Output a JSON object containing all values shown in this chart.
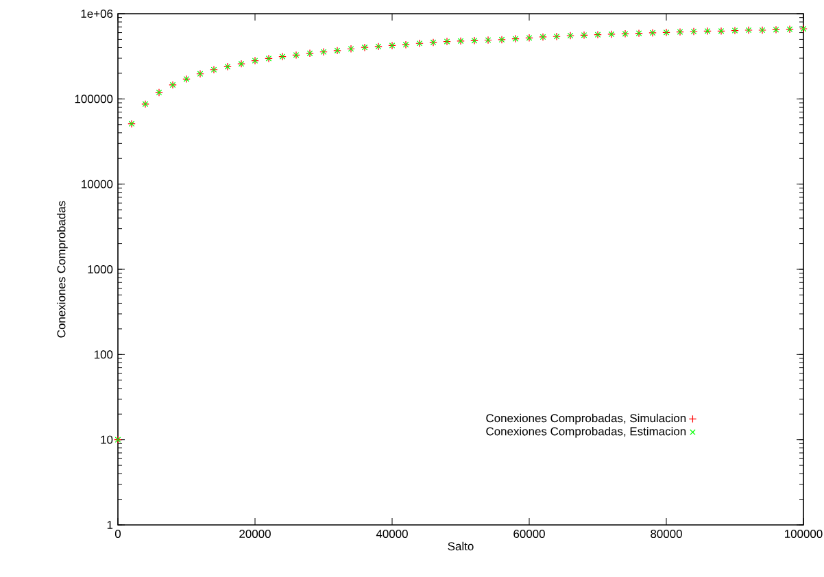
{
  "chart_data": {
    "type": "scatter",
    "xlabel": "Salto",
    "ylabel": "Conexiones Comprobadas",
    "log": "y",
    "legend": "bottom right",
    "grid": false,
    "x": [
      0,
      2000,
      4000,
      6000,
      8000,
      10000,
      12000,
      14000,
      16000,
      18000,
      20000,
      22000,
      24000,
      26000,
      28000,
      30000,
      32000,
      34000,
      36000,
      38000,
      40000,
      42000,
      44000,
      46000,
      48000,
      50000,
      52000,
      54000,
      56000,
      58000,
      60000,
      62000,
      64000,
      66000,
      68000,
      70000,
      72000,
      74000,
      76000,
      78000,
      80000,
      82000,
      84000,
      86000,
      88000,
      90000,
      92000,
      94000,
      96000,
      98000,
      100000
    ],
    "xlim": [
      0,
      100000
    ],
    "xticks": [
      0,
      20000,
      40000,
      60000,
      80000,
      100000
    ],
    "ylim": [
      1,
      1000000
    ],
    "yticks": [
      1,
      10,
      100,
      1000,
      10000,
      100000,
      {
        "value": 1000000,
        "label": "1e+06"
      }
    ],
    "series": [
      {
        "name": "Conexiones Comprobadas, Simulacion",
        "color": "#ff0000",
        "marker": "cross",
        "values": [
          10,
          51000,
          87000,
          119000,
          146000,
          171000,
          197000,
          220000,
          239000,
          258000,
          281000,
          298000,
          314000,
          327000,
          343000,
          356000,
          369000,
          387000,
          402000,
          412000,
          423000,
          433000,
          449000,
          460000,
          472000,
          478000,
          483000,
          490000,
          495000,
          508000,
          520000,
          533000,
          540000,
          553000,
          560000,
          567000,
          574000,
          581000,
          589000,
          596000,
          603000,
          611000,
          618000,
          625000,
          625000,
          634000,
          641000,
          641000,
          649000,
          657000,
          665000
        ]
      },
      {
        "name": "Conexiones Comprobadas, Estimacion",
        "color": "#00ff00",
        "marker": "cross",
        "values": [
          10,
          51000,
          87000,
          119000,
          146000,
          171000,
          197000,
          220000,
          239000,
          258000,
          281000,
          298000,
          314000,
          327000,
          343000,
          356000,
          369000,
          387000,
          402000,
          412000,
          423000,
          433000,
          449000,
          460000,
          472000,
          478000,
          483000,
          490000,
          495000,
          508000,
          520000,
          533000,
          540000,
          553000,
          560000,
          567000,
          574000,
          581000,
          589000,
          596000,
          603000,
          611000,
          618000,
          625000,
          625000,
          634000,
          641000,
          641000,
          649000,
          657000,
          665000
        ]
      }
    ]
  }
}
